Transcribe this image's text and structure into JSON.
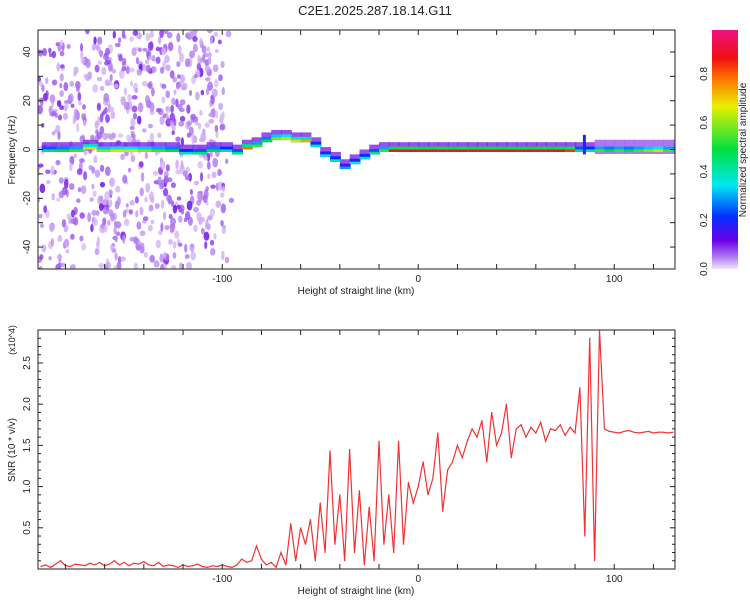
{
  "chart_data": [
    {
      "type": "heatmap",
      "title": "C2E1.2025.287.18.14.G11",
      "xlabel": "Height of straight line (km)",
      "ylabel": "Frequency (Hz)",
      "xlim": [
        -194,
        131
      ],
      "ylim": [
        -49,
        49
      ],
      "xticks": [
        -100,
        0,
        100
      ],
      "yticks": [
        40,
        20,
        0,
        -20,
        -40
      ],
      "colorbar": {
        "label": "Normalized spectral amplitude",
        "range": [
          0,
          1
        ],
        "ticks": [
          "0.0",
          "0.2",
          "0.4",
          "0.6",
          "0.8"
        ]
      },
      "ridge": {
        "x": [
          -192,
          -185,
          -178,
          -171,
          -164,
          -157,
          -150,
          -143,
          -136,
          -129,
          -122,
          -115,
          -108,
          -101,
          -95,
          -90,
          -85,
          -80,
          -75,
          -70,
          -65,
          -60,
          -55,
          -50,
          -45,
          -40,
          -35,
          -30,
          -25,
          -20,
          -15,
          -10,
          -5,
          0,
          5,
          10,
          15,
          20,
          25,
          30,
          35,
          40,
          45,
          50,
          55,
          60,
          65,
          70,
          75,
          80,
          85,
          90,
          95,
          100,
          105,
          110,
          115,
          120,
          125,
          130
        ],
        "freq": [
          -1,
          -1,
          -1,
          0,
          -1,
          -1,
          -1,
          -1,
          -1,
          -1,
          -2,
          -2,
          -1,
          -1,
          -2,
          0,
          1,
          3,
          4,
          4,
          3,
          3,
          1,
          -3,
          -5,
          -8,
          -6,
          -4,
          -2,
          -1,
          -1,
          -1,
          -1,
          -1,
          -1,
          -1,
          -1,
          -1,
          -1,
          -1,
          -1,
          -1,
          -1,
          -1,
          -1,
          -1,
          -1,
          -1,
          -1,
          -1,
          -1,
          -1,
          -1,
          -1,
          -1,
          -1,
          -1,
          -1,
          -1,
          -1
        ],
        "amp": [
          0.45,
          0.5,
          0.55,
          0.7,
          0.6,
          0.7,
          0.65,
          0.6,
          0.55,
          0.5,
          0.4,
          0.45,
          0.5,
          0.4,
          0.45,
          0.8,
          0.55,
          0.5,
          0.6,
          0.65,
          0.7,
          0.75,
          0.4,
          0.35,
          0.4,
          0.3,
          0.35,
          0.4,
          0.45,
          0.55,
          0.9,
          0.92,
          0.88,
          0.9,
          0.9,
          0.92,
          0.9,
          0.88,
          0.9,
          0.9,
          0.92,
          0.9,
          0.88,
          0.9,
          0.9,
          0.92,
          0.9,
          0.88,
          0.85,
          0.45,
          0.4,
          0.55,
          0.5,
          0.55,
          0.5,
          0.55,
          0.6,
          0.65,
          0.55,
          0.5
        ]
      }
    },
    {
      "type": "line",
      "xlabel": "Height of straight line (km)",
      "ylabel": "SNR (10 * v/v)",
      "y_multiplier": "(x10^4)",
      "xlim": [
        -194,
        131
      ],
      "ylim": [
        0,
        2.9
      ],
      "xticks": [
        -100,
        0,
        100
      ],
      "yticks": [
        "0.5",
        "1.0",
        "1.5",
        "2.0",
        "2.5"
      ],
      "x_start": -192.5,
      "x_step": 2.5,
      "color": "#ee3333",
      "values": [
        0.03,
        0.05,
        0.02,
        0.06,
        0.1,
        0.04,
        0.03,
        0.06,
        0.05,
        0.04,
        0.07,
        0.05,
        0.08,
        0.04,
        0.06,
        0.1,
        0.05,
        0.08,
        0.04,
        0.07,
        0.06,
        0.09,
        0.05,
        0.04,
        0.08,
        0.03,
        0.05,
        0.04,
        0.02,
        0.05,
        0.03,
        0.04,
        0.06,
        0.03,
        0.02,
        0.04,
        0.03,
        0.05,
        0.03,
        0.02,
        0.05,
        0.12,
        0.08,
        0.1,
        0.28,
        0.12,
        0.05,
        0.08,
        0.02,
        0.2,
        0.05,
        0.55,
        0.1,
        0.5,
        0.3,
        0.6,
        0.1,
        0.8,
        0.2,
        1.43,
        0.3,
        0.9,
        0.1,
        1.45,
        0.2,
        0.95,
        0.05,
        0.75,
        0.1,
        1.55,
        0.3,
        0.9,
        0.2,
        1.55,
        0.3,
        1.05,
        0.8,
        1.0,
        1.3,
        0.9,
        1.1,
        1.65,
        0.7,
        1.2,
        1.3,
        1.5,
        1.35,
        1.55,
        1.7,
        1.6,
        1.8,
        1.3,
        1.9,
        1.5,
        1.65,
        2.0,
        1.35,
        1.7,
        1.75,
        1.6,
        1.72,
        1.65,
        1.78,
        1.55,
        1.7,
        1.68,
        1.75,
        1.62,
        1.72,
        1.65,
        2.2,
        0.4,
        2.8,
        0.1,
        2.9,
        1.7,
        1.67,
        1.66,
        1.65,
        1.67,
        1.68,
        1.66,
        1.65,
        1.66,
        1.67,
        1.65,
        1.66,
        1.66,
        1.65,
        1.66
      ]
    }
  ]
}
